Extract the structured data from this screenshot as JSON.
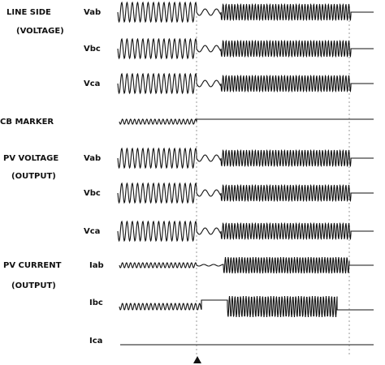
{
  "groups": [
    {
      "label": "LINE SIDE",
      "sublabel": "(VOLTAGE)",
      "channels": [
        "Vab",
        "Vbc",
        "Vca"
      ]
    },
    {
      "label": "CB MARKER"
    },
    {
      "label": "PV VOLTAGE",
      "sublabel": "(OUTPUT)",
      "channels": [
        "Vab",
        "Vbc",
        "Vca"
      ]
    },
    {
      "label": "PV CURRENT",
      "sublabel": "(OUTPUT)",
      "channels": [
        "Iab",
        "Ibc",
        "Ica"
      ]
    }
  ]
}
